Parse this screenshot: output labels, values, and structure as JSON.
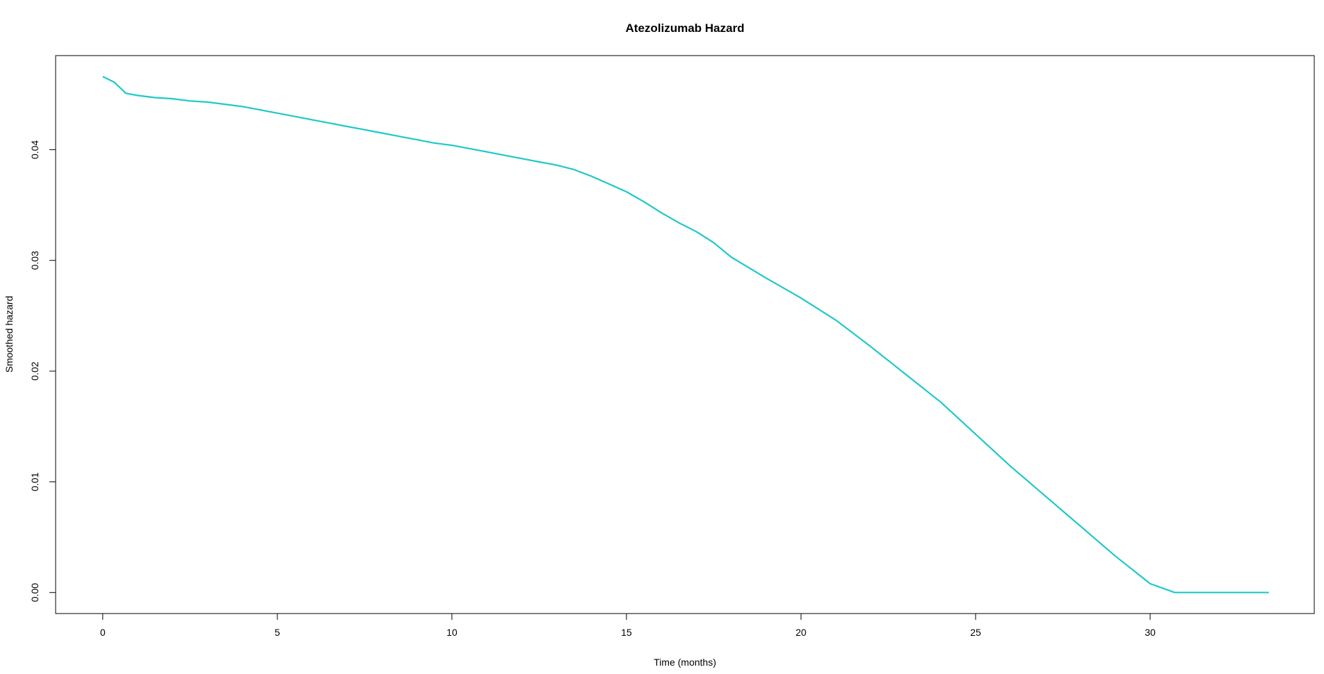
{
  "chart_data": {
    "type": "line",
    "title": "Atezolizumab Hazard",
    "xlabel": "Time (months)",
    "ylabel": "Smoothed hazard",
    "xlim": [
      -1.35,
      34.7
    ],
    "ylim": [
      -0.0019,
      0.0485
    ],
    "x_ticks": [
      0,
      5,
      10,
      15,
      20,
      25,
      30
    ],
    "x_tick_labels": [
      "0",
      "5",
      "10",
      "15",
      "20",
      "25",
      "30"
    ],
    "y_ticks": [
      0.0,
      0.01,
      0.02,
      0.03,
      0.04
    ],
    "y_tick_labels": [
      "0.00",
      "0.01",
      "0.02",
      "0.03",
      "0.04"
    ],
    "grid": false,
    "legend": "none",
    "series": [
      {
        "color": "#1ec8c8",
        "x": [
          0.0,
          0.33,
          0.66,
          1.0,
          1.5,
          2.0,
          2.5,
          3.0,
          3.5,
          4.0,
          4.5,
          5.0,
          5.5,
          6.0,
          6.5,
          7.0,
          7.5,
          8.0,
          8.5,
          9.0,
          9.5,
          10.0,
          10.5,
          11.0,
          11.5,
          12.0,
          12.5,
          13.0,
          13.5,
          14.0,
          14.5,
          15.0,
          15.5,
          16.0,
          16.5,
          17.0,
          17.5,
          18.0,
          19.0,
          20.0,
          21.0,
          22.0,
          23.0,
          24.0,
          25.0,
          26.0,
          27.0,
          28.0,
          29.0,
          30.0,
          30.7,
          31.5,
          32.5,
          33.4
        ],
        "y": [
          0.0466,
          0.0461,
          0.0451,
          0.0449,
          0.0447,
          0.0446,
          0.0444,
          0.0443,
          0.0441,
          0.0439,
          0.0436,
          0.0433,
          0.043,
          0.0427,
          0.0424,
          0.0421,
          0.0418,
          0.0415,
          0.0412,
          0.0409,
          0.0406,
          0.0404,
          0.0401,
          0.0398,
          0.0395,
          0.0392,
          0.0389,
          0.0386,
          0.0382,
          0.0376,
          0.0369,
          0.0362,
          0.0353,
          0.0343,
          0.0334,
          0.0326,
          0.0316,
          0.0303,
          0.0284,
          0.0266,
          0.0246,
          0.0222,
          0.0197,
          0.0172,
          0.0143,
          0.0114,
          0.0087,
          0.006,
          0.0033,
          0.0008,
          0.0,
          0.0,
          0.0,
          0.0
        ]
      }
    ]
  }
}
